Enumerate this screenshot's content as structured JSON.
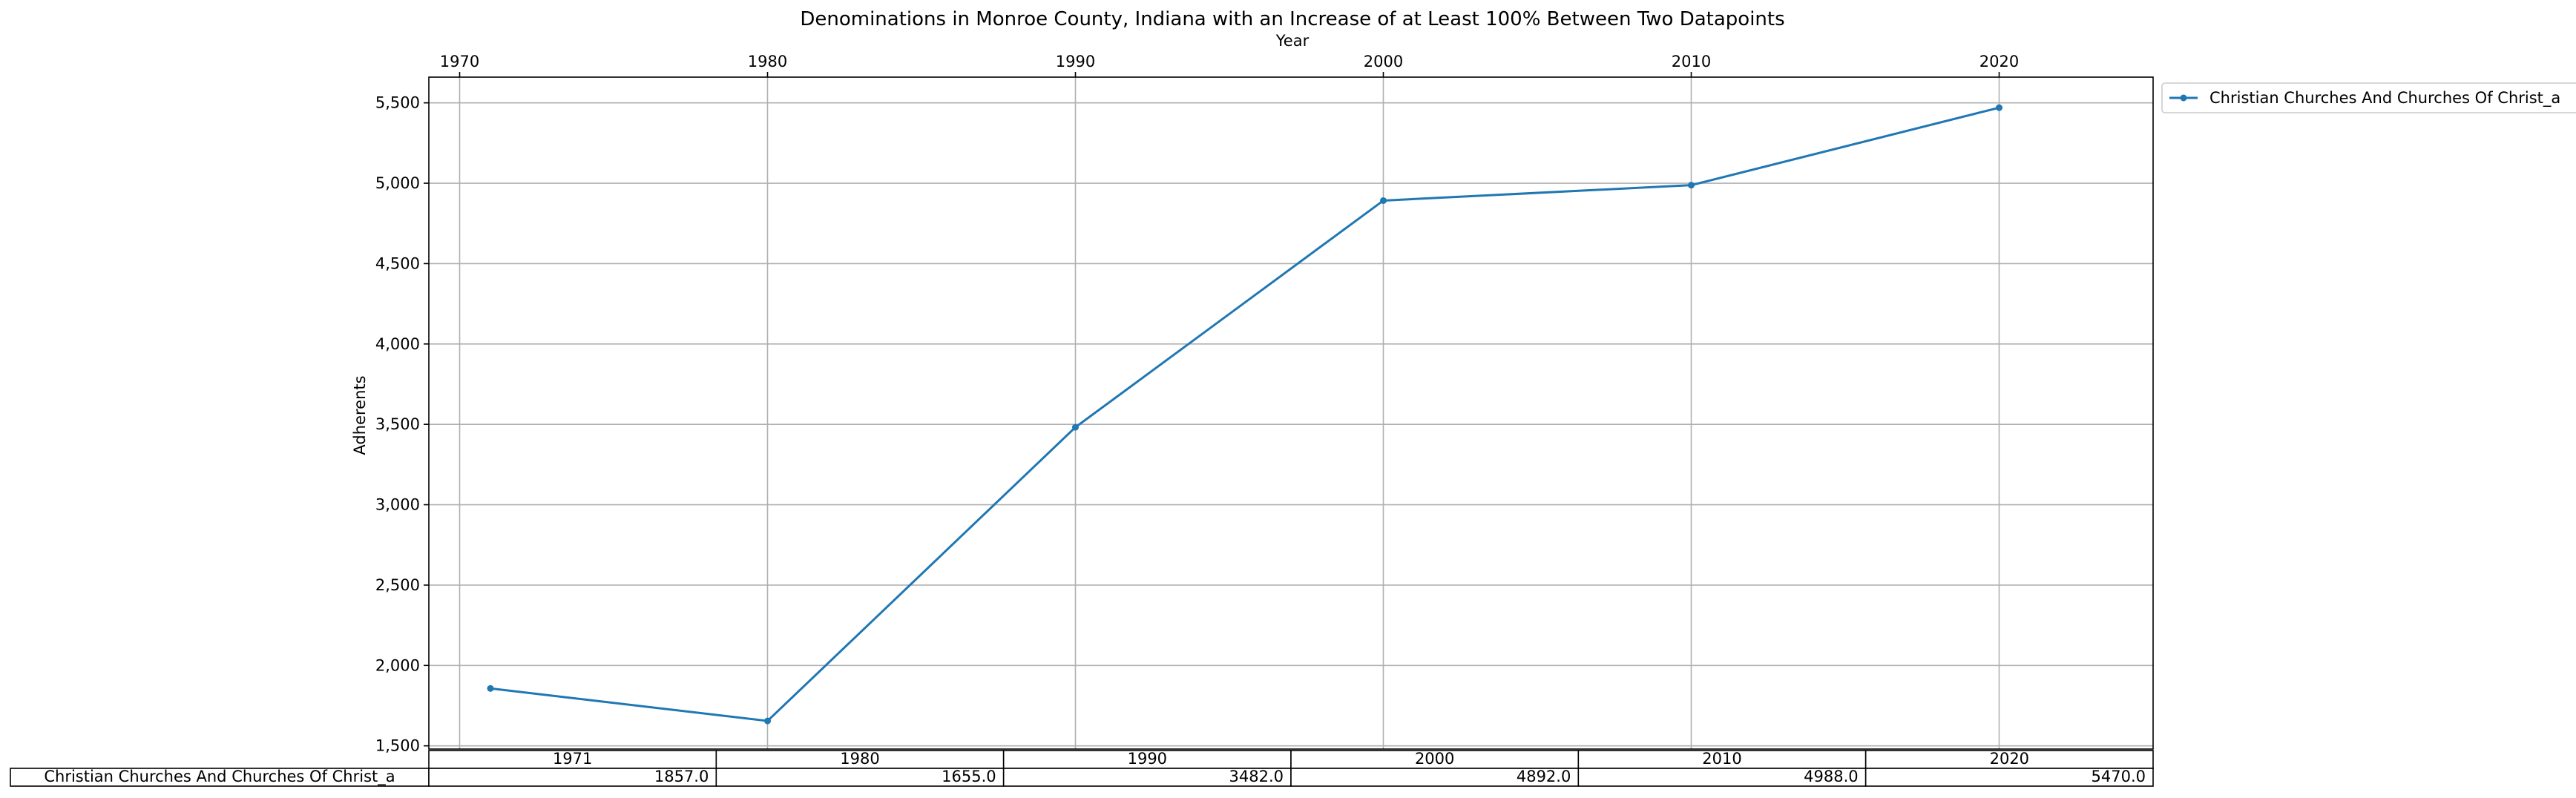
{
  "chart_data": {
    "type": "line",
    "title": "Denominations in Monroe County, Indiana with an Increase of at Least 100% Between Two Datapoints",
    "xlabel": "Year",
    "ylabel": "Adherents",
    "x_ticks": [
      1970,
      1980,
      1990,
      2000,
      2010,
      2020
    ],
    "y_ticks": [
      "1,500",
      "2,000",
      "2,500",
      "3,000",
      "3,500",
      "4,000",
      "4,500",
      "5,000",
      "5,500"
    ],
    "y_tick_values": [
      1500,
      2000,
      2500,
      3000,
      3500,
      4000,
      4500,
      5000,
      5500
    ],
    "xlim": [
      1969,
      2025
    ],
    "ylim": [
      1480,
      5660
    ],
    "grid": true,
    "legend_position": "outside-top-right",
    "series": [
      {
        "name": "Christian Churches And Churches Of Christ_a",
        "color": "#1f77b4",
        "x": [
          1971,
          1980,
          1990,
          2000,
          2010,
          2020
        ],
        "y": [
          1857,
          1655,
          3482,
          4892,
          4988,
          5470
        ]
      }
    ],
    "table": {
      "columns": [
        "1971",
        "1980",
        "1990",
        "2000",
        "2010",
        "2020"
      ],
      "rows": [
        {
          "label": "Christian Churches And Churches Of Christ_a",
          "cells": [
            "1857.0",
            "1655.0",
            "3482.0",
            "4892.0",
            "4988.0",
            "5470.0"
          ]
        }
      ]
    }
  }
}
